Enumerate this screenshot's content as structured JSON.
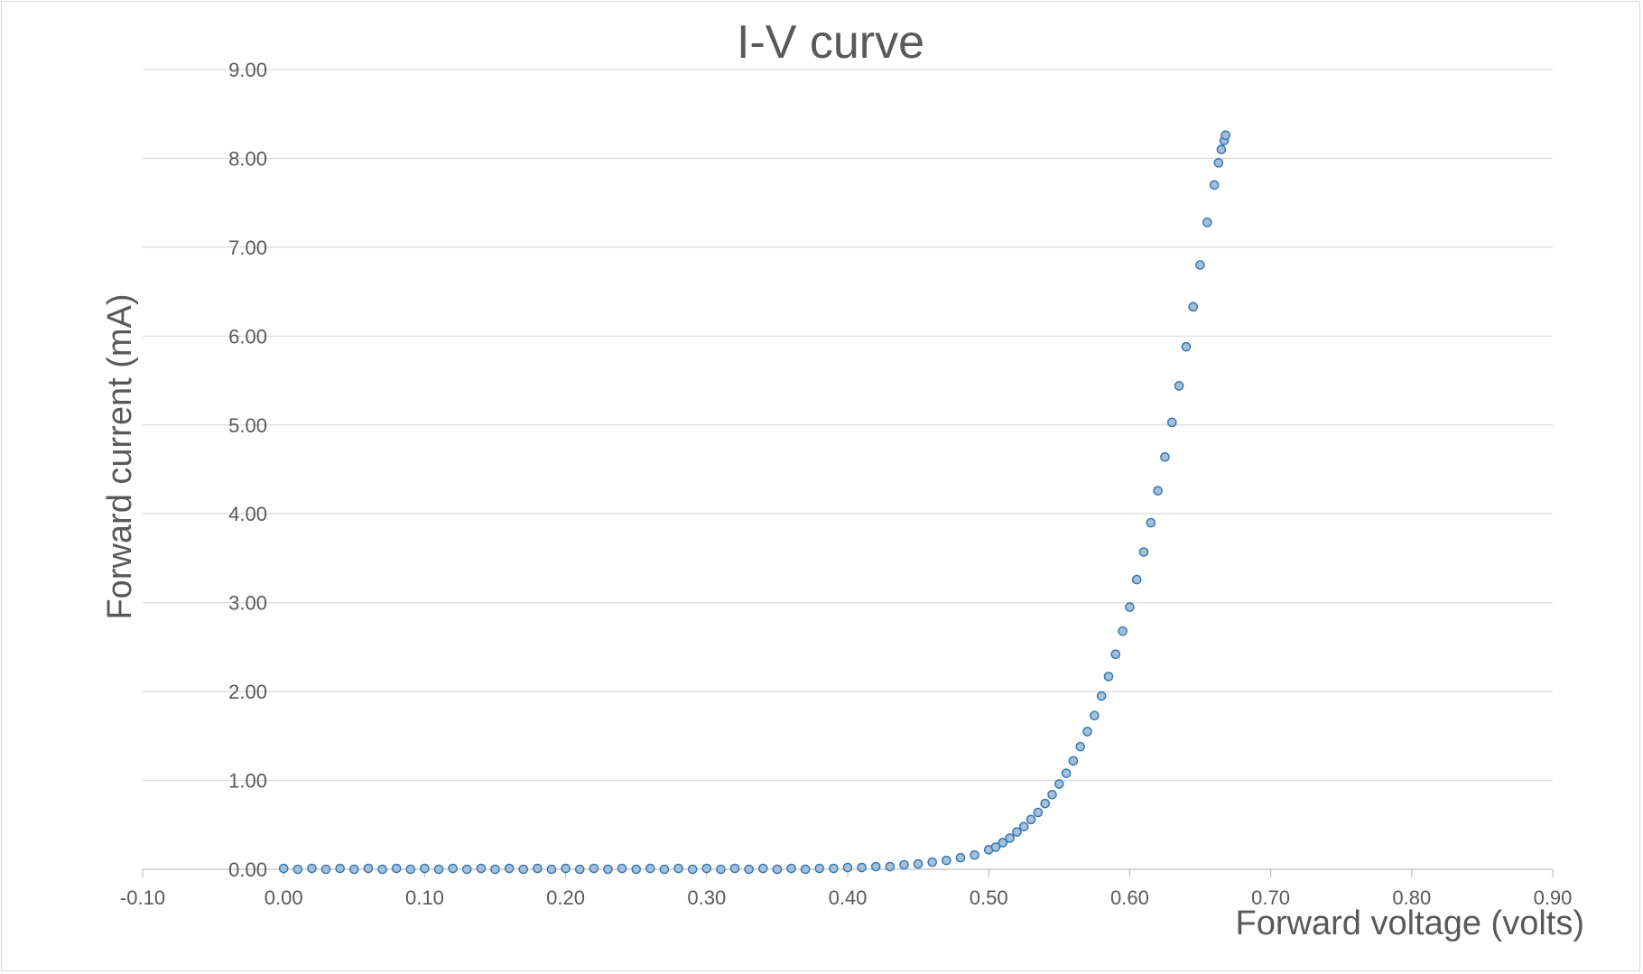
{
  "chart_data": {
    "type": "scatter",
    "title": "I-V curve",
    "xlabel": "Forward voltage (volts)",
    "ylabel": "Forward current (mA)",
    "xlim": [
      -0.1,
      0.9
    ],
    "ylim": [
      0.0,
      9.0
    ],
    "x_ticks": [
      "-0.10",
      "0.00",
      "0.10",
      "0.20",
      "0.30",
      "0.40",
      "0.50",
      "0.60",
      "0.70",
      "0.80",
      "0.90"
    ],
    "y_ticks": [
      "0.00",
      "1.00",
      "2.00",
      "3.00",
      "4.00",
      "5.00",
      "6.00",
      "7.00",
      "8.00",
      "9.00"
    ],
    "grid": "horizontal",
    "legend": "none",
    "colors": {
      "marker_fill": "#a6bfd6",
      "marker_edge": "#2e75b6",
      "gridline": "#d9d9d9",
      "text": "#595959"
    },
    "series": [
      {
        "x": [
          0.0,
          0.01,
          0.02,
          0.03,
          0.04,
          0.05,
          0.06,
          0.07,
          0.08,
          0.09,
          0.1,
          0.11,
          0.12,
          0.13,
          0.14,
          0.15,
          0.16,
          0.17,
          0.18,
          0.19,
          0.2,
          0.21,
          0.22,
          0.23,
          0.24,
          0.25,
          0.26,
          0.27,
          0.28,
          0.29,
          0.3,
          0.31,
          0.32,
          0.33,
          0.34,
          0.35,
          0.36,
          0.37,
          0.38,
          0.39,
          0.4,
          0.41,
          0.42,
          0.43,
          0.44,
          0.45,
          0.46,
          0.47,
          0.48,
          0.49,
          0.5,
          0.505,
          0.51,
          0.515,
          0.52,
          0.525,
          0.53,
          0.535,
          0.54,
          0.545,
          0.55,
          0.555,
          0.56,
          0.565,
          0.57,
          0.575,
          0.58,
          0.585,
          0.59,
          0.595,
          0.6,
          0.605,
          0.61,
          0.615,
          0.62,
          0.625,
          0.63,
          0.635,
          0.64,
          0.645,
          0.65,
          0.655,
          0.66,
          0.663,
          0.665,
          0.667,
          0.668
        ],
        "y": [
          0.01,
          0.0,
          0.01,
          0.0,
          0.01,
          0.0,
          0.01,
          0.0,
          0.01,
          0.0,
          0.01,
          0.0,
          0.01,
          0.0,
          0.01,
          0.0,
          0.01,
          0.0,
          0.01,
          0.0,
          0.01,
          0.0,
          0.01,
          0.0,
          0.01,
          0.0,
          0.01,
          0.0,
          0.01,
          0.0,
          0.01,
          0.0,
          0.01,
          0.0,
          0.01,
          0.0,
          0.01,
          0.0,
          0.01,
          0.01,
          0.02,
          0.02,
          0.03,
          0.03,
          0.05,
          0.06,
          0.08,
          0.1,
          0.13,
          0.16,
          0.22,
          0.25,
          0.3,
          0.35,
          0.42,
          0.48,
          0.56,
          0.64,
          0.74,
          0.84,
          0.96,
          1.08,
          1.22,
          1.38,
          1.55,
          1.73,
          1.95,
          2.17,
          2.42,
          2.68,
          2.95,
          3.26,
          3.57,
          3.9,
          4.26,
          4.64,
          5.03,
          5.44,
          5.88,
          6.33,
          6.8,
          7.28,
          7.7,
          7.95,
          8.1,
          8.2,
          8.26
        ]
      }
    ]
  }
}
